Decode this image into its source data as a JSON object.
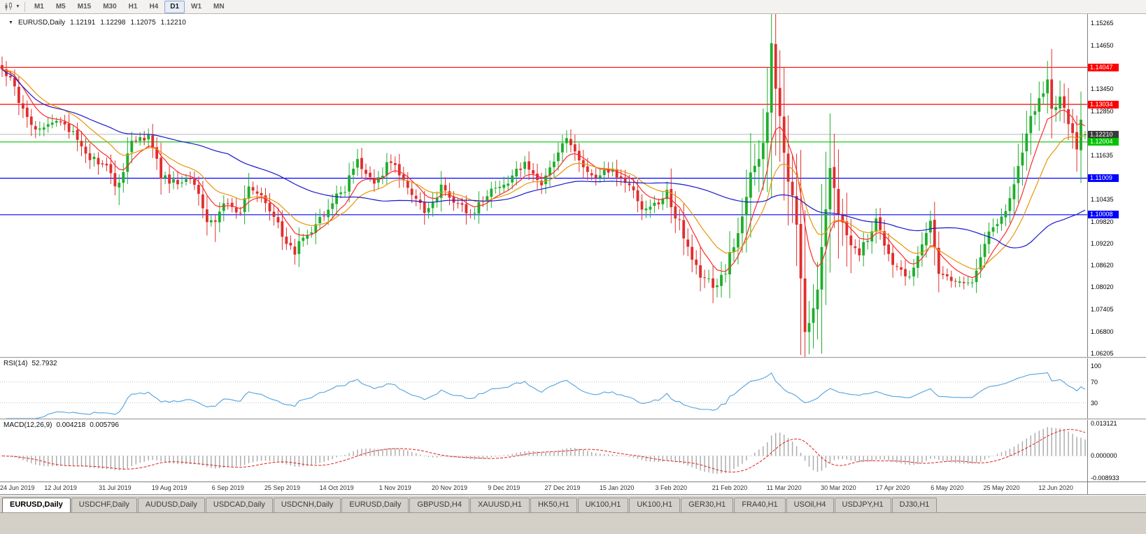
{
  "toolbar": {
    "timeframes": [
      "M1",
      "M5",
      "M15",
      "M30",
      "H1",
      "H4",
      "D1",
      "W1",
      "MN"
    ],
    "active_timeframe": "D1"
  },
  "chart_header": {
    "expander": "▼",
    "symbol": "EURUSD,Daily",
    "open": "1.12191",
    "high": "1.12298",
    "low": "1.12075",
    "close": "1.12210"
  },
  "main_axis_ticks": [
    "1.15265",
    "1.14650",
    "1.13450",
    "1.12850",
    "1.11635",
    "1.10435",
    "1.09820",
    "1.09220",
    "1.08620",
    "1.08020",
    "1.07405",
    "1.06800",
    "1.06205"
  ],
  "levels": [
    {
      "label": "1.14047",
      "value": 1.14047,
      "color": "#ff0000",
      "kind": "resistance-line-1"
    },
    {
      "label": "1.13034",
      "value": 1.13034,
      "color": "#ff0000",
      "kind": "resistance-line-2"
    },
    {
      "label": "1.12210",
      "value": 1.1221,
      "color": "#b8b8b8",
      "chip_bg": "#3a3a3a",
      "kind": "current-price-line"
    },
    {
      "label": "1.12004",
      "value": 1.12004,
      "color": "#00c400",
      "kind": "support-line-green"
    },
    {
      "label": "1.11009",
      "value": 1.11009,
      "color": "#0000ff",
      "kind": "support-line-blue-1"
    },
    {
      "label": "1.10008",
      "value": 1.10008,
      "color": "#0000ff",
      "kind": "support-line-blue-2"
    }
  ],
  "rsi_panel": {
    "title": "RSI(14)",
    "value": "52.7932",
    "axis_ticks": [
      "100",
      "70",
      "30"
    ],
    "level_lines": [
      70,
      30
    ],
    "line_color": "#53a2dc",
    "range": [
      0,
      115
    ]
  },
  "macd_panel": {
    "title": "MACD(12,26,9)",
    "value_main": "0.004218",
    "value_signal": "0.005796",
    "axis_ticks": [
      "0.013121",
      "0.000000",
      "-0.008933"
    ],
    "range": [
      -0.01033,
      0.01452
    ],
    "hist_color": "#a8a8a8",
    "signal_color": "#e02020"
  },
  "date_axis": {
    "labels": [
      {
        "label": "24 Jun 2019",
        "bar": 0
      },
      {
        "label": "12 Jul 2019",
        "bar": 14
      },
      {
        "label": "31 Jul 2019",
        "bar": 27
      },
      {
        "label": "19 Aug 2019",
        "bar": 40
      },
      {
        "label": "6 Sep 2019",
        "bar": 54
      },
      {
        "label": "25 Sep 2019",
        "bar": 67
      },
      {
        "label": "14 Oct 2019",
        "bar": 80
      },
      {
        "label": "1 Nov 2019",
        "bar": 94
      },
      {
        "label": "20 Nov 2019",
        "bar": 107
      },
      {
        "label": "9 Dec 2019",
        "bar": 120
      },
      {
        "label": "27 Dec 2019",
        "bar": 134
      },
      {
        "label": "15 Jan 2020",
        "bar": 147
      },
      {
        "label": "3 Feb 2020",
        "bar": 160
      },
      {
        "label": "21 Feb 2020",
        "bar": 174
      },
      {
        "label": "11 Mar 2020",
        "bar": 187
      },
      {
        "label": "30 Mar 2020",
        "bar": 200
      },
      {
        "label": "17 Apr 2020",
        "bar": 213
      },
      {
        "label": "6 May 2020",
        "bar": 226
      },
      {
        "label": "25 May 2020",
        "bar": 239
      },
      {
        "label": "12 Jun 2020",
        "bar": 252
      }
    ]
  },
  "tabs": [
    {
      "label": "EURUSD,Daily",
      "active": true
    },
    {
      "label": "USDCHF,Daily",
      "active": false
    },
    {
      "label": "AUDUSD,Daily",
      "active": false
    },
    {
      "label": "USDCAD,Daily",
      "active": false
    },
    {
      "label": "USDCNH,Daily",
      "active": false
    },
    {
      "label": "EURUSD,Daily",
      "active": false
    },
    {
      "label": "GBPUSD,H4",
      "active": false
    },
    {
      "label": "XAUUSD,H1",
      "active": false
    },
    {
      "label": "HK50,H1",
      "active": false
    },
    {
      "label": "UK100,H1",
      "active": false
    },
    {
      "label": "UK100,H1",
      "active": false
    },
    {
      "label": "GER30,H1",
      "active": false
    },
    {
      "label": "FRA40,H1",
      "active": false
    },
    {
      "label": "USOil,H4",
      "active": false
    },
    {
      "label": "USDJPY,H1",
      "active": false
    },
    {
      "label": "DJ30,H1",
      "active": false
    }
  ],
  "chart_data": {
    "type": "candlestick",
    "title": "EURUSD,Daily",
    "ohlc_current": {
      "open": 1.12191,
      "high": 1.12298,
      "low": 1.12075,
      "close": 1.1221
    },
    "ylim": [
      1.0611,
      1.1551
    ],
    "n_candles": 260,
    "seed": 90210,
    "up_color": "#1fae2d",
    "down_color": "#e02e2e",
    "close_anchors": [
      [
        0,
        1.1399
      ],
      [
        2,
        1.1372
      ],
      [
        5,
        1.1286
      ],
      [
        9,
        1.1227
      ],
      [
        13,
        1.1253
      ],
      [
        17,
        1.1227
      ],
      [
        21,
        1.1151
      ],
      [
        25,
        1.1143
      ],
      [
        27,
        1.1075
      ],
      [
        28,
        1.1085
      ],
      [
        31,
        1.12
      ],
      [
        35,
        1.1213
      ],
      [
        38,
        1.1109
      ],
      [
        42,
        1.1085
      ],
      [
        46,
        1.1092
      ],
      [
        49,
        1.099
      ],
      [
        51,
        1.0973
      ],
      [
        53,
        1.1035
      ],
      [
        57,
        1.1011
      ],
      [
        59,
        1.1073
      ],
      [
        63,
        1.1043
      ],
      [
        67,
        1.0944
      ],
      [
        70,
        1.0899
      ],
      [
        71,
        1.0932
      ],
      [
        75,
        1.0973
      ],
      [
        79,
        1.104
      ],
      [
        82,
        1.1073
      ],
      [
        85,
        1.115
      ],
      [
        89,
        1.108
      ],
      [
        93,
        1.1152
      ],
      [
        97,
        1.1068
      ],
      [
        101,
        1.101
      ],
      [
        105,
        1.1073
      ],
      [
        109,
        1.1021
      ],
      [
        113,
        1.1008
      ],
      [
        117,
        1.1077
      ],
      [
        121,
        1.1092
      ],
      [
        125,
        1.1145
      ],
      [
        129,
        1.1077
      ],
      [
        133,
        1.1176
      ],
      [
        135,
        1.1212
      ],
      [
        137,
        1.1172
      ],
      [
        141,
        1.1103
      ],
      [
        145,
        1.1127
      ],
      [
        149,
        1.1095
      ],
      [
        153,
        1.1023
      ],
      [
        157,
        1.1033
      ],
      [
        159,
        1.106
      ],
      [
        163,
        1.0945
      ],
      [
        167,
        1.084
      ],
      [
        171,
        1.08
      ],
      [
        173,
        1.0846
      ],
      [
        177,
        1.1
      ],
      [
        179,
        1.1134
      ],
      [
        181,
        1.1135
      ],
      [
        183,
        1.1284
      ],
      [
        184,
        1.1449
      ],
      [
        186,
        1.127
      ],
      [
        188,
        1.1106
      ],
      [
        190,
        1.0996
      ],
      [
        192,
        1.0692
      ],
      [
        193,
        1.0695
      ],
      [
        195,
        1.0789
      ],
      [
        197,
        1.103
      ],
      [
        198,
        1.1141
      ],
      [
        201,
        1.0964
      ],
      [
        205,
        1.0893
      ],
      [
        209,
        1.098
      ],
      [
        213,
        1.0862
      ],
      [
        217,
        1.0823
      ],
      [
        221,
        1.0955
      ],
      [
        222,
        1.098
      ],
      [
        224,
        1.0838
      ],
      [
        228,
        1.0807
      ],
      [
        232,
        1.082
      ],
      [
        236,
        1.0949
      ],
      [
        240,
        1.1007
      ],
      [
        243,
        1.1134
      ],
      [
        245,
        1.1233
      ],
      [
        247,
        1.1292
      ],
      [
        249,
        1.134
      ],
      [
        250,
        1.1375
      ],
      [
        251,
        1.1299
      ],
      [
        253,
        1.1324
      ],
      [
        255,
        1.1243
      ],
      [
        257,
        1.1177
      ],
      [
        258,
        1.126
      ],
      [
        259,
        1.1221
      ]
    ],
    "wick_overrides": {
      "0": {
        "h": 1.1412
      },
      "28": {
        "l": 1.1027
      },
      "51": {
        "l": 1.0926
      },
      "71": {
        "l": 1.0879
      },
      "172": {
        "l": 1.0778
      },
      "184": {
        "h": 1.1495
      },
      "193": {
        "l": 1.0636
      },
      "250": {
        "h": 1.1422
      }
    },
    "vol_zones": [
      {
        "from": 160,
        "to": 177,
        "mult": 1.4
      },
      {
        "from": 178,
        "to": 203,
        "mult": 2.3
      },
      {
        "from": 242,
        "to": 258,
        "mult": 1.5
      }
    ],
    "moving_averages": [
      {
        "name": "fast-ma",
        "type": "ema",
        "period": 8,
        "color": "#ff2a2a"
      },
      {
        "name": "mid-ma",
        "type": "ema",
        "period": 17,
        "color": "#e8960a"
      },
      {
        "name": "slow-ma",
        "type": "sma",
        "period": 55,
        "color": "#1a1acd"
      }
    ],
    "indicators": {
      "rsi_period": 14,
      "macd": [
        12,
        26,
        9
      ]
    }
  }
}
